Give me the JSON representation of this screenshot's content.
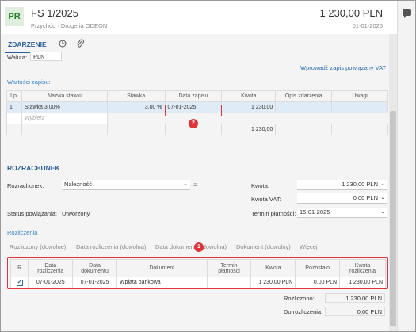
{
  "header": {
    "avatar": "PR",
    "title": "FS 1/2025",
    "subtitle": "Przychód  ·  Drogeria ODEON",
    "amount": "1 230,00 PLN",
    "date": "01-01-2025"
  },
  "tabs": {
    "active": "ZDARZENIE"
  },
  "waluta": {
    "label": "Waluta:",
    "value": "PLN"
  },
  "vat_link": "Wprowadź zapis powiązany VAT",
  "wartosci": {
    "title": "Wartości zapisu:",
    "columns": [
      "Lp.",
      "Nazwa stawki",
      "Stawka",
      "Data zapisu",
      "Kwota",
      "Opis zdarzenia",
      "Uwagi"
    ],
    "row": {
      "lp": "1",
      "nazwa": "Stawka 3,00%",
      "stawka": "3,00 %",
      "data": "07-01-2025",
      "kwota": "1 230,00",
      "opis": "",
      "uwagi": ""
    },
    "placeholder": "Wybierz",
    "total": "1 230,00"
  },
  "rozrachunek": {
    "title": "ROZRACHUNEK",
    "rozrachunek_label": "Rozrachunek:",
    "rozrachunek_value": "Należność",
    "status_label": "Status powiązania:",
    "status_value": "Utworzony",
    "kwota_label": "Kwota:",
    "kwota_value": "1 230,00 PLN",
    "kwota_vat_label": "Kwota VAT:",
    "kwota_vat_value": "0,00 PLN",
    "termin_label": "Termin płatności:",
    "termin_value": "15-01-2025"
  },
  "rozliczenia": {
    "title": "Rozliczenia",
    "column_tabs": [
      "Rozliczony (dowolne)",
      "Data rozliczenia (dowolna)",
      "Data dokumentu (dowolna)",
      "Dokument (dowolny)",
      "Więcej"
    ],
    "columns": [
      "R",
      "Data rozliczenia",
      "Data dokumentu",
      "Dokument",
      "Termin płatności",
      "Kwota",
      "Pozostało",
      "Kwota rozliczenia"
    ],
    "row": {
      "r": "✔",
      "data_rozl": "07-01-2025",
      "data_dok": "07-01-2025",
      "dokument": "Wpłata bankowa",
      "termin": "",
      "kwota": "1 230,00 PLN",
      "pozostalo": "0,00 PLN",
      "kwota_rozl": "1 230,00 PLN"
    },
    "rozliczono_label": "Rozliczono:",
    "rozliczono_value": "1 230,00 PLN",
    "do_rozliczenia_label": "Do rozliczenia:",
    "do_rozliczenia_value": "0,00 PLN"
  },
  "badges": [
    "1",
    "2"
  ],
  "icons": [
    "settings-list-icon",
    "attachment-icon",
    "chat-icon",
    "chevron-down-icon",
    "menu-icon"
  ],
  "colors": {
    "accent": "#2c5e9c",
    "highlight": "#e0333c",
    "avatar_bg": "#dfeedd"
  }
}
